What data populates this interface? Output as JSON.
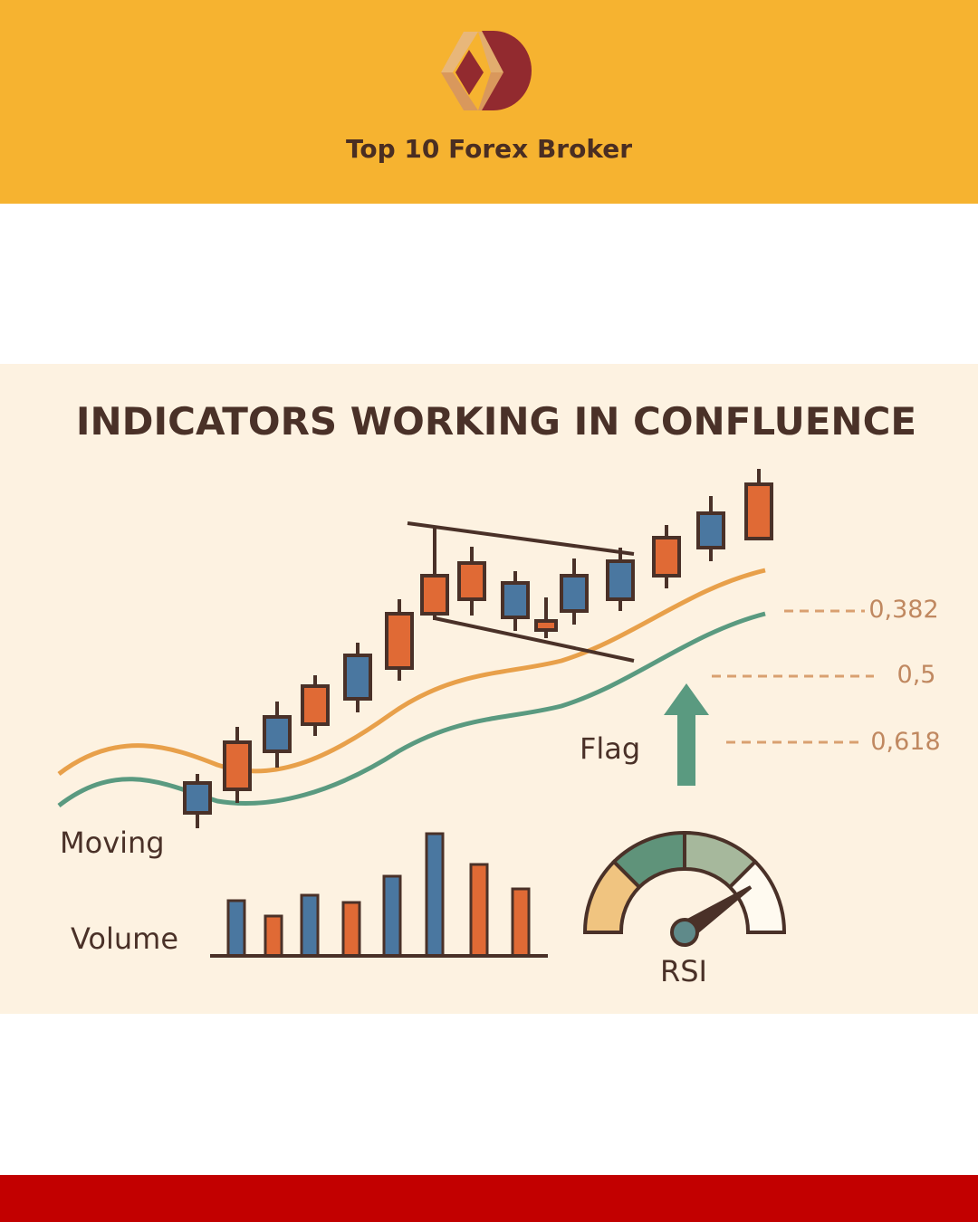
{
  "header": {
    "brand": "Top 10 Forex Broker",
    "color": "#f6b330"
  },
  "infographic": {
    "title": "INDICATORS WORKING IN CONFLUENCE",
    "labels": {
      "moving": "Moving",
      "volume": "Volume",
      "flag": "Flag",
      "rsi": "RSI"
    },
    "fib_levels": [
      "0,382",
      "0,5",
      "0,618"
    ],
    "colors": {
      "bull": "#e06a35",
      "bear": "#4a77a0",
      "ma_fast": "#e8a04a",
      "ma_slow": "#5a9a80",
      "outline": "#4a3128"
    },
    "candles": [
      {
        "c": "bear",
        "w": [
          855,
          915
        ],
        "b": [
          865,
          898
        ]
      },
      {
        "c": "bull",
        "w": [
          803,
          887
        ],
        "b": [
          820,
          872
        ]
      },
      {
        "c": "bear",
        "w": [
          775,
          848
        ],
        "b": [
          792,
          830
        ]
      },
      {
        "c": "bull",
        "w": [
          746,
          813
        ],
        "b": [
          758,
          800
        ]
      },
      {
        "c": "bear",
        "w": [
          710,
          787
        ],
        "b": [
          724,
          772
        ]
      },
      {
        "c": "bull",
        "w": [
          662,
          752
        ],
        "b": [
          678,
          738
        ]
      },
      {
        "c": "bull",
        "w": [
          582,
          685
        ],
        "b": [
          636,
          678
        ]
      },
      {
        "c": "bull",
        "w": [
          604,
          680
        ],
        "b": [
          622,
          662
        ]
      },
      {
        "c": "bear",
        "w": [
          631,
          697
        ],
        "b": [
          644,
          682
        ]
      },
      {
        "c": "bull",
        "w": [
          660,
          705
        ],
        "b": [
          686,
          696
        ]
      },
      {
        "c": "bear",
        "w": [
          617,
          690
        ],
        "b": [
          636,
          675
        ]
      },
      {
        "c": "bear",
        "w": [
          605,
          675
        ],
        "b": [
          620,
          662
        ]
      },
      {
        "c": "bull",
        "w": [
          580,
          650
        ],
        "b": [
          594,
          636
        ]
      },
      {
        "c": "bear",
        "w": [
          548,
          620
        ],
        "b": [
          567,
          605
        ]
      },
      {
        "c": "bull",
        "w": [
          518,
          595
        ],
        "b": [
          535,
          595
        ]
      }
    ],
    "volume": [
      {
        "c": "bear",
        "v": 61
      },
      {
        "c": "bull",
        "v": 44
      },
      {
        "c": "bear",
        "v": 67
      },
      {
        "c": "bull",
        "v": 59
      },
      {
        "c": "bear",
        "v": 88
      },
      {
        "c": "bear",
        "v": 135
      },
      {
        "c": "bull",
        "v": 101
      },
      {
        "c": "bull",
        "v": 74
      }
    ]
  },
  "footer": {
    "color": "#c20000"
  }
}
